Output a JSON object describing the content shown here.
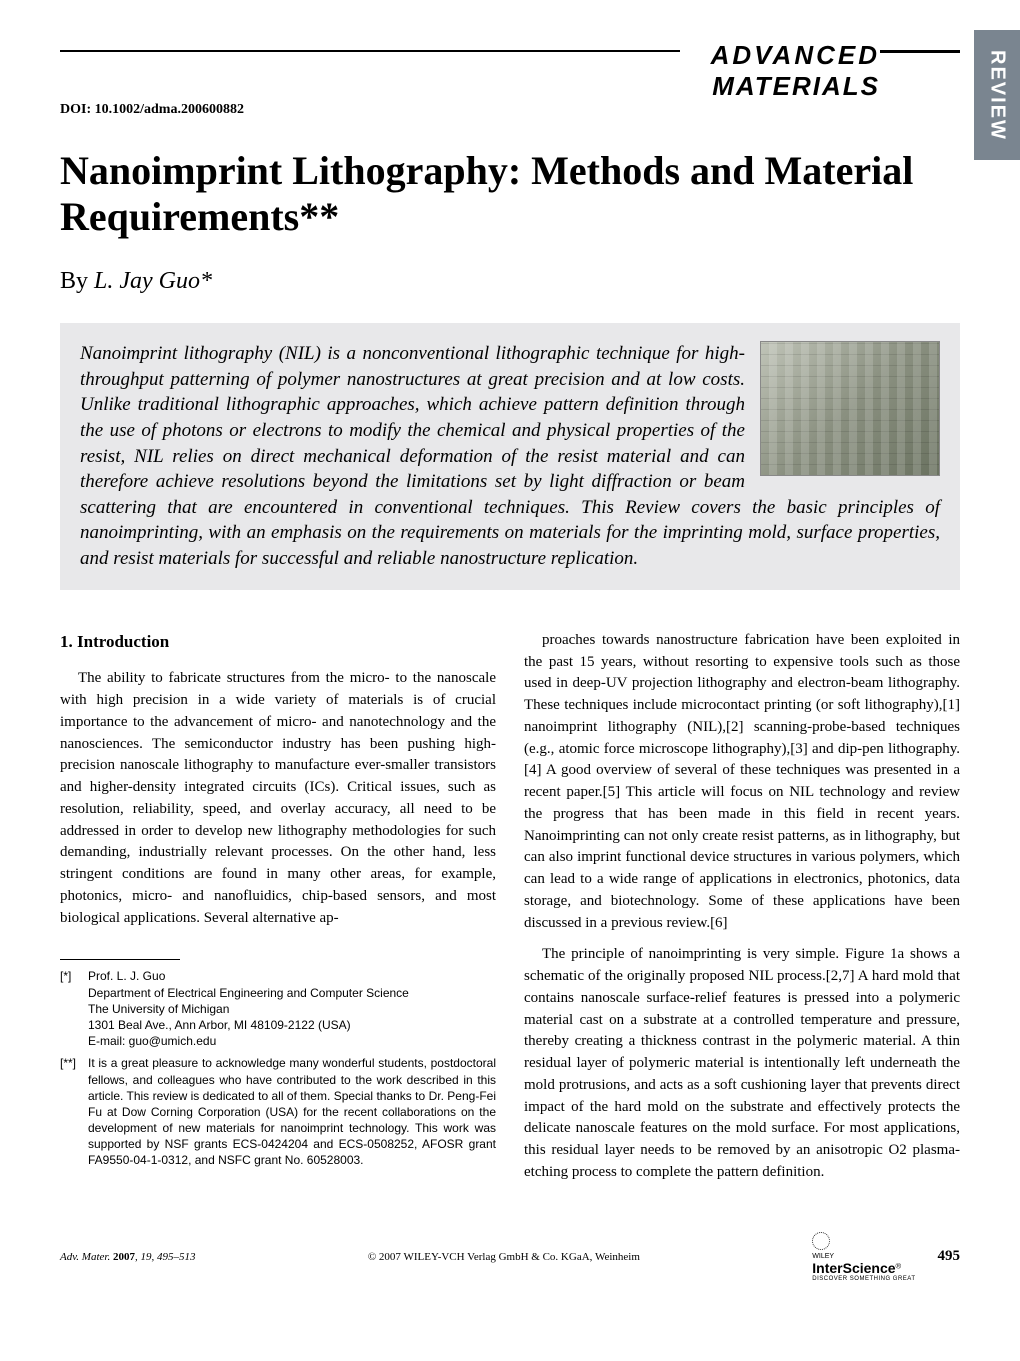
{
  "journal_logo": {
    "line1": "ADVANCED",
    "line2": "MATERIALS"
  },
  "side_tab": "REVIEW",
  "doi": "DOI: 10.1002/adma.200600882",
  "title": "Nanoimprint Lithography: Methods and Material Requirements**",
  "author": {
    "by": "By ",
    "name": "L. Jay Guo*"
  },
  "abstract": "Nanoimprint lithography (NIL) is a nonconventional lithographic technique for high-throughput patterning of polymer nanostructures at great precision and at low costs. Unlike traditional lithographic approaches, which achieve pattern definition through the use of photons or electrons to modify the chemical and physical properties of the resist, NIL relies on direct mechanical deformation of the resist material and can therefore achieve resolutions beyond the limitations set by light diffraction or beam scattering that are encountered in conventional techniques. This Review covers the basic principles of nanoimprinting, with an emphasis on the requirements on materials for the imprinting mold, surface properties, and resist materials for successful and reliable nanostructure replication.",
  "section_heading": "1. Introduction",
  "col1_p1": "The ability to fabricate structures from the micro- to the nanoscale with high precision in a wide variety of materials is of crucial importance to the advancement of micro- and nanotechnology and the nanosciences. The semiconductor industry has been pushing high-precision nanoscale lithography to manufacture ever-smaller transistors and higher-density integrated circuits (ICs). Critical issues, such as resolution, reliability, speed, and overlay accuracy, all need to be addressed in order to develop new lithography methodologies for such demanding, industrially relevant processes. On the other hand, less stringent conditions are found in many other areas, for example, photonics, micro- and nanofluidics, chip-based sensors, and most biological applications. Several alternative ap-",
  "col2_p1": "proaches towards nanostructure fabrication have been exploited in the past 15 years, without resorting to expensive tools such as those used in deep-UV projection lithography and electron-beam lithography. These techniques include microcontact printing (or soft lithography),[1] nanoimprint lithography (NIL),[2] scanning-probe-based techniques (e.g., atomic force microscope lithography),[3] and dip-pen lithography.[4] A good overview of several of these techniques was presented in a recent paper.[5] This article will focus on NIL technology and review the progress that has been made in this field in recent years. Nanoimprinting can not only create resist patterns, as in lithography, but can also imprint functional device structures in various polymers, which can lead to a wide range of applications in electronics, photonics, data storage, and biotechnology. Some of these applications have been discussed in a previous review.[6]",
  "col2_p2": "The principle of nanoimprinting is very simple. Figure 1a shows a schematic of the originally proposed NIL process.[2,7] A hard mold that contains nanoscale surface-relief features is pressed into a polymeric material cast on a substrate at a controlled temperature and pressure, thereby creating a thickness contrast in the polymeric material. A thin residual layer of polymeric material is intentionally left underneath the mold protrusions, and acts as a soft cushioning layer that prevents direct impact of the hard mold on the substrate and effectively protects the delicate nanoscale features on the mold surface. For most applications, this residual layer needs to be removed by an anisotropic O2 plasma-etching process to complete the pattern definition.",
  "footnotes": {
    "star": {
      "marker": "[*]",
      "lines": [
        "Prof. L. J. Guo",
        "Department of Electrical Engineering and Computer Science",
        "The University of Michigan",
        "1301 Beal Ave., Ann Arbor, MI 48109-2122 (USA)",
        "E-mail: guo@umich.edu"
      ]
    },
    "dstar": {
      "marker": "[**]",
      "text": "It is a great pleasure to acknowledge many wonderful students, postdoctoral fellows, and colleagues who have contributed to the work described in this article. This review is dedicated to all of them. Special thanks to Dr. Peng-Fei Fu at Dow Corning Corporation (USA) for the recent collaborations on the development of new materials for nanoimprint technology. This work was supported by NSF grants ECS-0424204 and ECS-0508252, AFOSR grant FA9550-04-1-0312, and NSFC grant No. 60528003."
    }
  },
  "footer": {
    "left_italic": "Adv. Mater. ",
    "left_bold": "2007",
    "left_rest": ", 19, 495–513",
    "center": "© 2007 WILEY-VCH Verlag GmbH & Co. KGaA, Weinheim",
    "is_brand_top": "WILEY",
    "is_brand": "InterScience",
    "is_brand_sub": "DISCOVER SOMETHING GREAT",
    "page": "495"
  },
  "colors": {
    "side_tab_bg": "#7a8590",
    "abstract_bg": "#e8e8ea"
  }
}
